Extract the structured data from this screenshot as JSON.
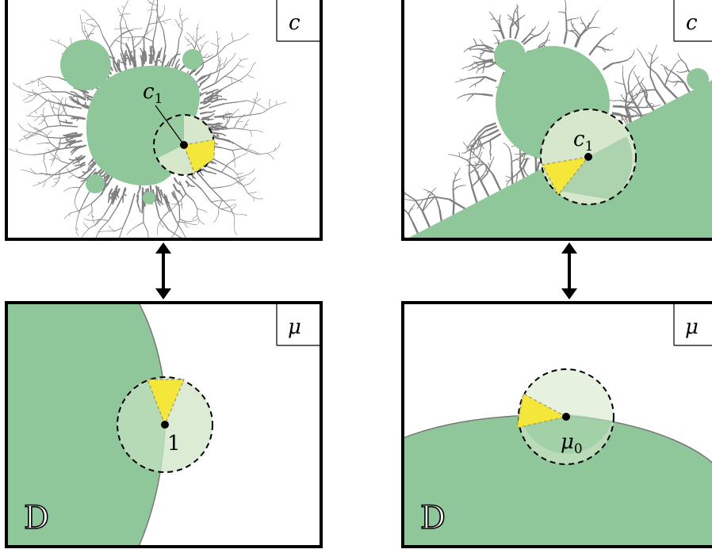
{
  "panels": {
    "top_left": {
      "corner_label": "c",
      "point_label": "c",
      "point_sub": "1"
    },
    "top_right": {
      "corner_label": "c",
      "point_label": "c",
      "point_sub": "1"
    },
    "bottom_left": {
      "corner_label": "μ",
      "point_label": "1",
      "region_label": "D"
    },
    "bottom_right": {
      "corner_label": "μ",
      "point_label": "μ",
      "point_sub": "0",
      "region_label": "D"
    }
  },
  "colors": {
    "region": "#8fc79a",
    "disk": "#d6e7cc",
    "sector": "#f5e63a",
    "fractal": "#7f7f7f"
  }
}
